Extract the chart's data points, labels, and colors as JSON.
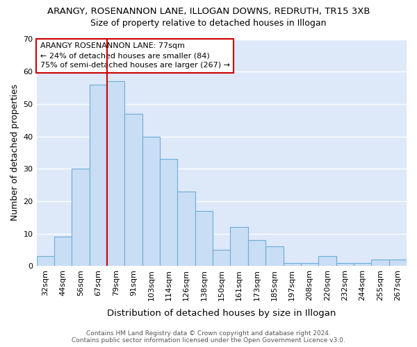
{
  "title1": "ARANGY, ROSENANNON LANE, ILLOGAN DOWNS, REDRUTH, TR15 3XB",
  "title2": "Size of property relative to detached houses in Illogan",
  "xlabel": "Distribution of detached houses by size in Illogan",
  "ylabel": "Number of detached properties",
  "categories": [
    "32sqm",
    "44sqm",
    "56sqm",
    "67sqm",
    "79sqm",
    "91sqm",
    "103sqm",
    "114sqm",
    "126sqm",
    "138sqm",
    "150sqm",
    "161sqm",
    "173sqm",
    "185sqm",
    "197sqm",
    "208sqm",
    "220sqm",
    "232sqm",
    "244sqm",
    "255sqm",
    "267sqm"
  ],
  "values": [
    3,
    9,
    30,
    56,
    57,
    47,
    40,
    33,
    23,
    17,
    5,
    12,
    8,
    6,
    1,
    1,
    3,
    1,
    1,
    2,
    2
  ],
  "bar_color": "#c9ddf5",
  "bar_edge_color": "#6aaed6",
  "vline_color": "#cc0000",
  "annotation_title": "ARANGY ROSENANNON LANE: 77sqm",
  "annotation_line1": "← 24% of detached houses are smaller (84)",
  "annotation_line2": "75% of semi-detached houses are larger (267) →",
  "ylim": [
    0,
    70
  ],
  "yticks": [
    0,
    10,
    20,
    30,
    40,
    50,
    60,
    70
  ],
  "footnote1": "Contains HM Land Registry data © Crown copyright and database right 2024.",
  "footnote2": "Contains public sector information licensed under the Open Government Licence v3.0.",
  "fig_bg_color": "#ffffff",
  "plot_bg_color": "#dde8f8",
  "grid_color": "#ffffff",
  "title1_fontsize": 9.5,
  "title2_fontsize": 9.0,
  "xlabel_fontsize": 9.5,
  "ylabel_fontsize": 9.0,
  "tick_fontsize": 8.0,
  "ann_fontsize": 8.0,
  "footnote_fontsize": 6.5
}
